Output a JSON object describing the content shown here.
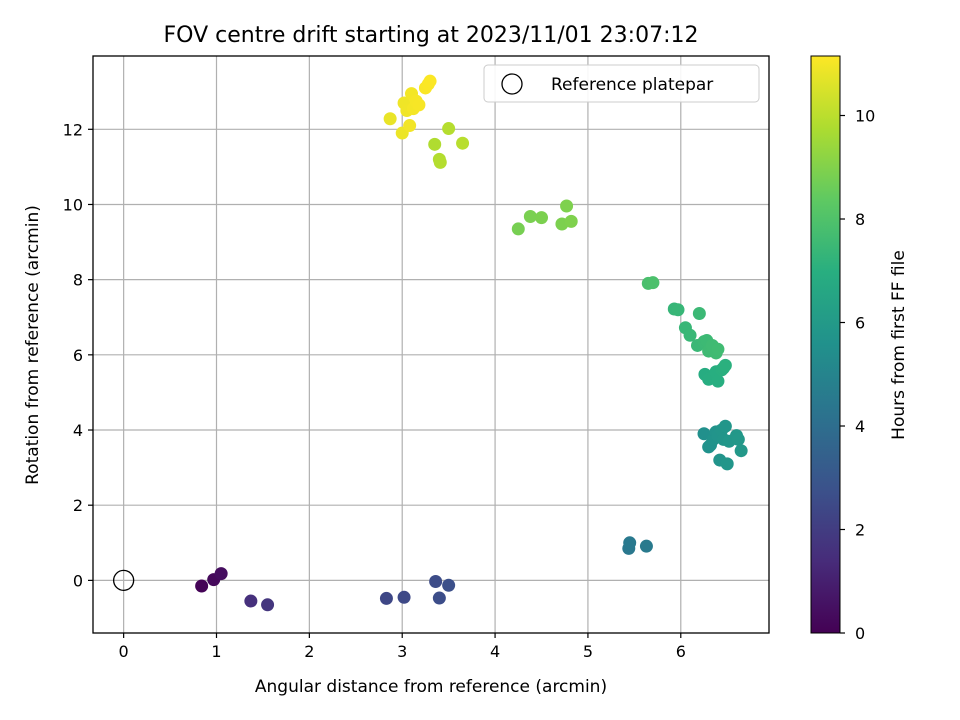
{
  "chart_data": {
    "type": "scatter",
    "title": "FOV centre drift starting at 2023/11/01 23:07:12",
    "xlabel": "Angular distance from reference (arcmin)",
    "ylabel": "Rotation from reference (arcmin)",
    "xlim": [
      -0.33,
      6.95
    ],
    "ylim": [
      -1.4,
      13.95
    ],
    "xticks": [
      0,
      1,
      2,
      3,
      4,
      5,
      6
    ],
    "yticks": [
      0,
      2,
      4,
      6,
      8,
      10,
      12
    ],
    "grid": true,
    "legend": {
      "placement": "upper right",
      "entries": [
        "Reference platepar"
      ]
    },
    "reference_point": {
      "x": 0,
      "y": 0,
      "marker": "open-circle",
      "color": "#000000"
    },
    "colorbar": {
      "label": "Hours from first FF file",
      "min": 0,
      "max": 11.15,
      "ticks": [
        0,
        2,
        4,
        6,
        8,
        10
      ],
      "colormap": "viridis"
    },
    "series": [
      {
        "x": [
          0.84,
          0.97,
          1.05,
          1.37,
          1.55,
          2.83,
          3.02,
          3.36,
          3.4,
          3.5,
          5.44,
          5.45,
          5.63,
          6.25,
          6.3,
          6.32,
          6.35,
          6.38,
          6.4,
          6.42,
          6.44,
          6.46,
          6.48,
          6.5,
          6.52,
          6.6,
          6.62,
          6.65,
          6.26,
          6.3,
          6.35,
          6.38,
          6.4,
          6.44,
          6.46,
          6.48,
          5.93,
          5.97,
          6.05,
          6.1,
          6.18,
          6.2,
          6.25,
          6.28,
          6.3,
          6.34,
          6.38,
          6.4,
          5.65,
          5.7,
          4.25,
          4.38,
          4.5,
          4.72,
          4.77,
          4.82,
          2.87,
          3.0,
          3.02,
          3.05,
          3.08,
          3.1,
          3.12,
          3.15,
          3.18,
          3.25,
          3.28,
          3.3,
          3.35,
          3.4,
          3.41,
          3.5,
          3.65
        ],
        "y": [
          -0.15,
          0.02,
          0.18,
          -0.55,
          -0.65,
          -0.48,
          -0.45,
          -0.03,
          -0.47,
          -0.13,
          0.85,
          1.0,
          0.91,
          3.9,
          3.55,
          3.6,
          3.75,
          3.95,
          3.85,
          3.2,
          4.0,
          3.75,
          4.1,
          3.1,
          3.7,
          3.85,
          3.75,
          3.45,
          5.48,
          5.35,
          5.4,
          5.55,
          5.3,
          5.6,
          5.65,
          5.72,
          7.22,
          7.2,
          6.72,
          6.52,
          6.25,
          7.1,
          6.35,
          6.38,
          6.1,
          6.25,
          6.05,
          6.15,
          7.9,
          7.92,
          9.35,
          9.68,
          9.65,
          9.48,
          9.96,
          9.55,
          12.28,
          11.9,
          12.7,
          12.5,
          12.1,
          12.95,
          12.55,
          12.75,
          12.65,
          13.1,
          13.2,
          13.28,
          11.6,
          11.2,
          11.12,
          12.02,
          11.63
        ],
        "hours": [
          0.08,
          0.25,
          0.4,
          1.55,
          1.75,
          2.4,
          2.45,
          2.55,
          2.62,
          2.7,
          4.45,
          4.5,
          4.55,
          5.55,
          5.6,
          5.62,
          5.65,
          5.68,
          5.7,
          5.72,
          5.75,
          5.78,
          5.8,
          5.82,
          5.85,
          5.88,
          5.9,
          5.92,
          6.85,
          6.9,
          6.92,
          6.95,
          6.98,
          7.0,
          7.02,
          7.05,
          7.35,
          7.38,
          7.4,
          7.42,
          7.45,
          7.48,
          7.5,
          7.52,
          7.55,
          7.58,
          7.6,
          7.62,
          7.85,
          7.9,
          8.8,
          8.85,
          8.88,
          8.9,
          8.92,
          8.95,
          10.8,
          10.85,
          10.9,
          10.92,
          10.95,
          10.98,
          11.0,
          11.02,
          11.05,
          11.08,
          11.1,
          11.12,
          9.8,
          9.85,
          9.88,
          9.9,
          9.95
        ]
      }
    ]
  }
}
